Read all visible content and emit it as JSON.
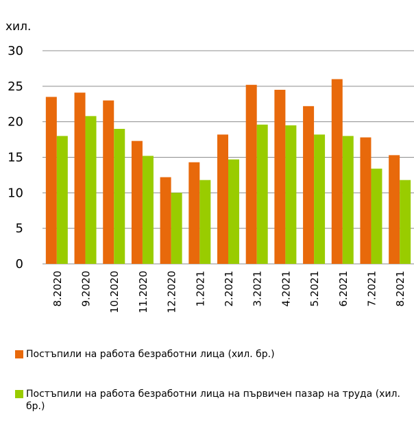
{
  "chart_data": {
    "type": "bar",
    "title": "хил.",
    "categories": [
      "8.2020",
      "9.2020",
      "10.2020",
      "11.2020",
      "12.2020",
      "1.2021",
      "2.2021",
      "3.2021",
      "4.2021",
      "5.2021",
      "6.2021",
      "7.2021",
      "8.2021"
    ],
    "series": [
      {
        "name": "Постъпили на работа безработни лица  (хил. бр.)",
        "color": "#e8690b",
        "values": [
          23.5,
          24.1,
          23.0,
          17.3,
          12.2,
          14.3,
          18.2,
          25.2,
          24.5,
          22.2,
          26.0,
          17.8,
          15.3
        ]
      },
      {
        "name": "Постъпили на работа безработни лица на първичен пазар на труда  (хил. бр.)",
        "color": "#99cc00",
        "values": [
          18.0,
          20.8,
          19.0,
          15.2,
          10.0,
          11.8,
          14.7,
          19.6,
          19.5,
          18.2,
          18.0,
          13.4,
          11.8
        ]
      }
    ],
    "ylim": [
      0,
      30
    ],
    "yticks": [
      0,
      5,
      10,
      15,
      20,
      25,
      30
    ],
    "grid": true,
    "legend": "bottom"
  }
}
